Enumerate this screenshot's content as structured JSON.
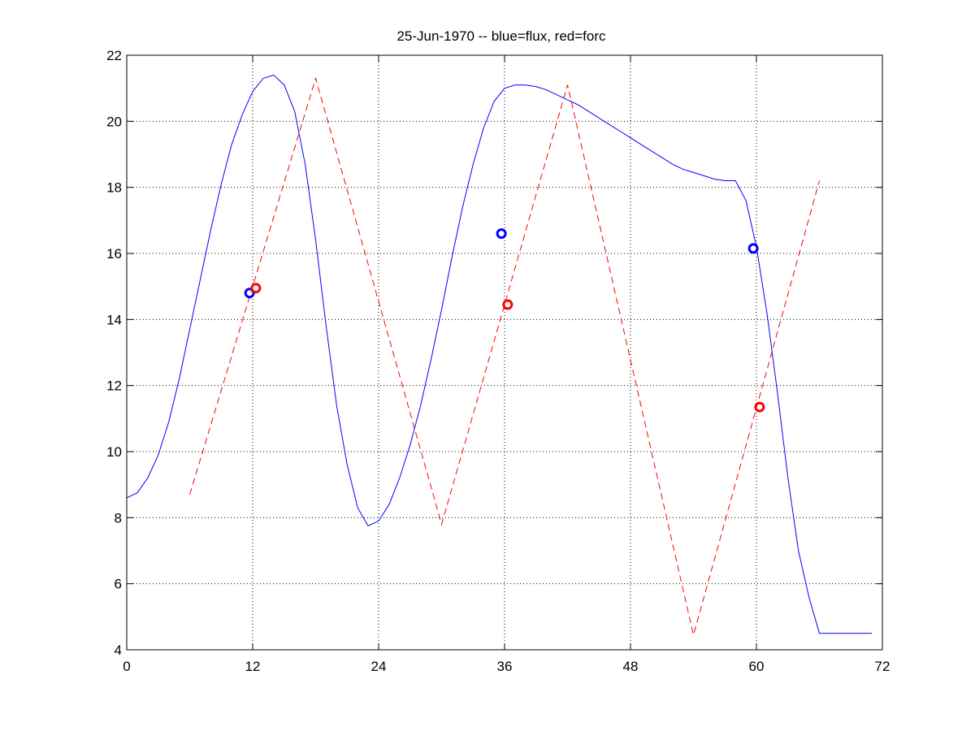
{
  "chart_data": {
    "type": "line",
    "title": "25-Jun-1970 -- blue=flux, red=forc",
    "xlabel": "",
    "ylabel": "",
    "xlim": [
      0,
      72
    ],
    "ylim": [
      4,
      22
    ],
    "xticks": [
      0,
      12,
      24,
      36,
      48,
      60,
      72
    ],
    "yticks": [
      4,
      6,
      8,
      10,
      12,
      14,
      16,
      18,
      20,
      22
    ],
    "xtick_labels": [
      "0",
      "12",
      "24",
      "36",
      "48",
      "60",
      "72"
    ],
    "ytick_labels": [
      "4",
      "6",
      "8",
      "10",
      "12",
      "14",
      "16",
      "18",
      "20",
      "22"
    ],
    "grid": true,
    "series": [
      {
        "color": "#0000ff",
        "style": "solid",
        "x": [
          0,
          1,
          2,
          3,
          4,
          5,
          6,
          7,
          8,
          9,
          10,
          11,
          12,
          13,
          14,
          15,
          16,
          17,
          18,
          19,
          20,
          21,
          22,
          23,
          24,
          25,
          26,
          27,
          28,
          29,
          30,
          31,
          32,
          33,
          34,
          35,
          36,
          37,
          38,
          39,
          40,
          41,
          42,
          43,
          44,
          45,
          46,
          47,
          48,
          49,
          50,
          51,
          52,
          53,
          54,
          55,
          56,
          57,
          58,
          59,
          60,
          61,
          62,
          63,
          64,
          65,
          66,
          67,
          68,
          69,
          70,
          71
        ],
        "y": [
          8.6,
          8.75,
          9.2,
          9.9,
          10.9,
          12.2,
          13.7,
          15.2,
          16.7,
          18.1,
          19.3,
          20.2,
          20.9,
          21.3,
          21.4,
          21.1,
          20.3,
          18.7,
          16.4,
          13.8,
          11.4,
          9.6,
          8.3,
          7.75,
          7.9,
          8.4,
          9.2,
          10.2,
          11.4,
          12.8,
          14.3,
          15.9,
          17.4,
          18.7,
          19.8,
          20.6,
          21.0,
          21.1,
          21.1,
          21.05,
          20.95,
          20.8,
          20.65,
          20.5,
          20.3,
          20.1,
          19.9,
          19.7,
          19.5,
          19.3,
          19.1,
          18.9,
          18.7,
          18.55,
          18.45,
          18.35,
          18.25,
          18.2,
          18.2,
          17.6,
          16.2,
          14.2,
          11.8,
          9.2,
          7.0,
          5.6,
          4.5,
          4.5,
          4.5,
          4.5,
          4.5,
          4.5
        ]
      },
      {
        "color": "#ff0000",
        "style": "dashed",
        "x": [
          6,
          18,
          30,
          42,
          54,
          66
        ],
        "y": [
          8.7,
          21.3,
          7.8,
          21.1,
          4.45,
          18.2
        ]
      }
    ],
    "markers": [
      {
        "color": "#0000ff",
        "x": 11.7,
        "y": 14.8
      },
      {
        "color": "#ff0000",
        "x": 12.3,
        "y": 14.95
      },
      {
        "color": "#0000ff",
        "x": 35.7,
        "y": 16.6
      },
      {
        "color": "#ff0000",
        "x": 36.3,
        "y": 14.45
      },
      {
        "color": "#0000ff",
        "x": 59.7,
        "y": 16.15
      },
      {
        "color": "#ff0000",
        "x": 60.3,
        "y": 11.35
      }
    ]
  }
}
